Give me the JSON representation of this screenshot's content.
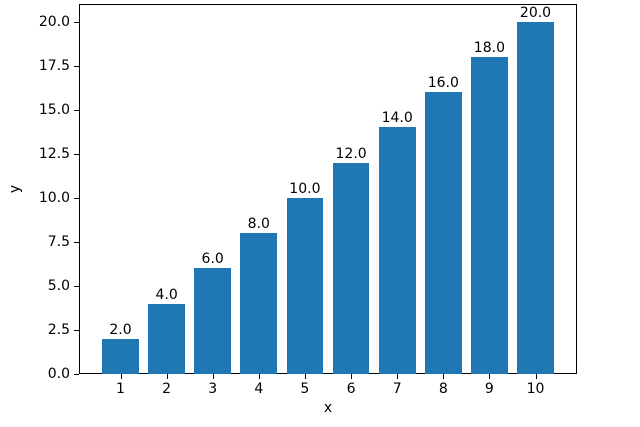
{
  "figure": {
    "background": "#ffffff",
    "text_color": "#000000"
  },
  "chart_data": {
    "type": "bar",
    "title": "",
    "xlabel": "x",
    "ylabel": "y",
    "x": [
      1,
      2,
      3,
      4,
      5,
      6,
      7,
      8,
      9,
      10
    ],
    "values": [
      2,
      4,
      6,
      8,
      10,
      12,
      14,
      16,
      18,
      20
    ],
    "bar_labels": [
      "2.0",
      "4.0",
      "6.0",
      "8.0",
      "10.0",
      "12.0",
      "14.0",
      "16.0",
      "18.0",
      "20.0"
    ],
    "xtick_labels": [
      "1",
      "2",
      "3",
      "4",
      "5",
      "6",
      "7",
      "8",
      "9",
      "10"
    ],
    "yticks": [
      0,
      2.5,
      5,
      7.5,
      10,
      12.5,
      15,
      17.5,
      20
    ],
    "ytick_labels": [
      "0.0",
      "2.5",
      "5.0",
      "7.5",
      "10.0",
      "12.5",
      "15.0",
      "17.5",
      "20.0"
    ],
    "xlim": [
      0.1,
      10.9
    ],
    "ylim": [
      0,
      21
    ],
    "bar_width": 0.8,
    "bar_color": "#1f77b4",
    "grid": false,
    "legend": null
  }
}
